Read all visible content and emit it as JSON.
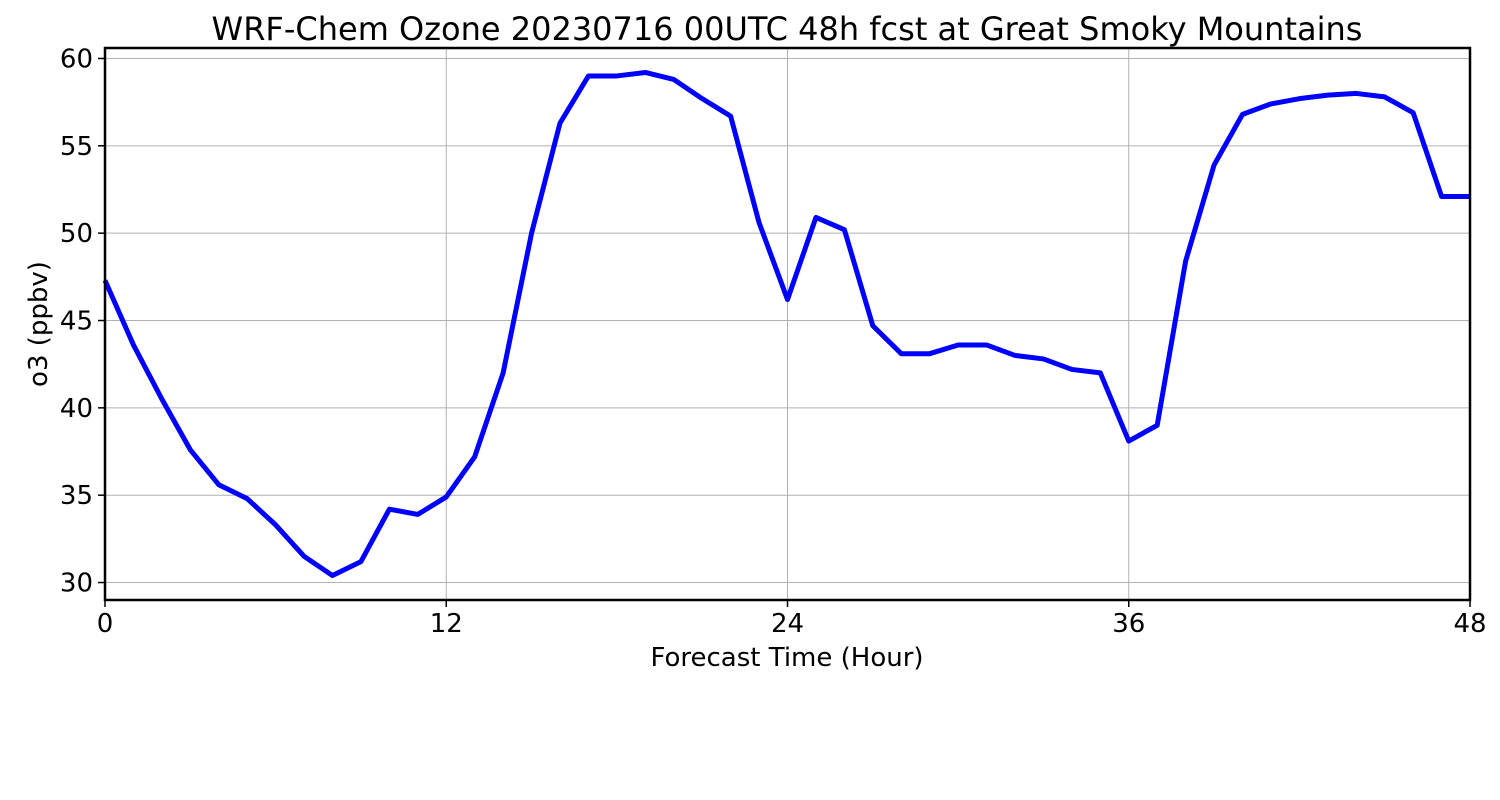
{
  "chart_data": {
    "type": "line",
    "title": "WRF-Chem Ozone  20230716 00UTC 48h fcst at Great Smoky Mountains",
    "xlabel": "Forecast Time (Hour)",
    "ylabel": "o3  (ppbv)",
    "xlim": [
      0,
      48
    ],
    "ylim": [
      29,
      60.6
    ],
    "xticks": [
      0,
      12,
      24,
      36,
      48
    ],
    "yticks": [
      30,
      35,
      40,
      45,
      50,
      55,
      60
    ],
    "grid": true,
    "series": [
      {
        "color": "#0000ff",
        "x": [
          0,
          1,
          2,
          3,
          4,
          5,
          6,
          7,
          8,
          9,
          10,
          11,
          12,
          13,
          14,
          15,
          16,
          17,
          18,
          19,
          20,
          21,
          22,
          23,
          24,
          25,
          26,
          27,
          28,
          29,
          30,
          31,
          32,
          33,
          34,
          35,
          36,
          37,
          38,
          39,
          40,
          41,
          42,
          43,
          44,
          45,
          46,
          47,
          48
        ],
        "values": [
          47.3,
          43.6,
          40.5,
          37.6,
          35.6,
          34.8,
          33.3,
          31.5,
          30.4,
          31.2,
          34.2,
          33.9,
          34.9,
          37.2,
          42.0,
          50.0,
          56.3,
          59.0,
          59.0,
          59.2,
          58.8,
          57.7,
          56.7,
          50.6,
          46.2,
          50.9,
          50.2,
          44.7,
          43.1,
          43.1,
          43.6,
          43.6,
          43.0,
          42.8,
          42.2,
          42.0,
          38.1,
          39.0,
          48.4,
          53.9,
          56.8,
          57.4,
          57.7,
          57.9,
          58.0,
          57.8,
          56.9,
          52.1,
          52.1
        ]
      }
    ]
  }
}
